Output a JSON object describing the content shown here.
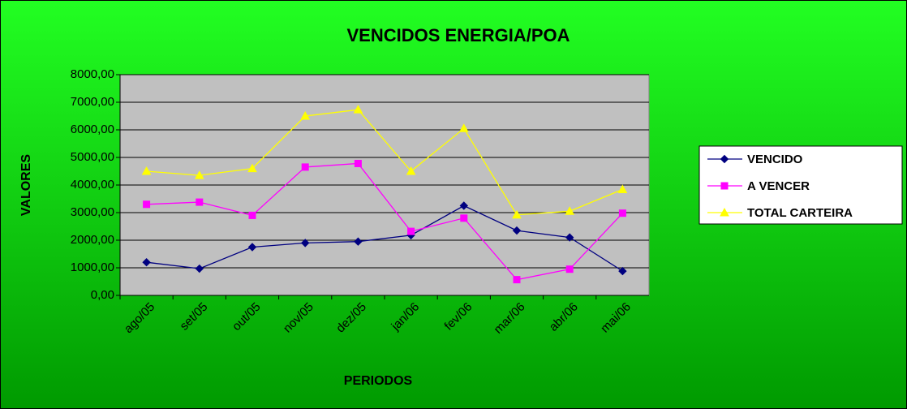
{
  "chart_data": {
    "type": "line",
    "title": "VENCIDOS ENERGIA/POA",
    "x_label": "PERIODOS",
    "y_label": "VALORES",
    "categories": [
      "ago/05",
      "set/05",
      "out/05",
      "nov/05",
      "dez/05",
      "jan/06",
      "fev/06",
      "mar/06",
      "abr/06",
      "mai/06"
    ],
    "series": [
      {
        "name": "VENCIDO",
        "color": "#000080",
        "marker": "diamond",
        "values": [
          1200,
          970,
          1750,
          1900,
          1950,
          2180,
          3250,
          2350,
          2100,
          880
        ]
      },
      {
        "name": "A VENCER",
        "color": "#ff00ff",
        "marker": "square",
        "values": [
          3300,
          3380,
          2900,
          4650,
          4780,
          2320,
          2800,
          570,
          950,
          2980
        ]
      },
      {
        "name": "TOTAL CARTEIRA",
        "color": "#ffff00",
        "marker": "triangle",
        "values": [
          4500,
          4350,
          4600,
          6500,
          6730,
          4500,
          6050,
          2920,
          3050,
          3840
        ]
      }
    ],
    "ylim": [
      0,
      8000
    ],
    "yticks": [
      {
        "value": 0,
        "label": "0,00"
      },
      {
        "value": 1000,
        "label": "1000,00"
      },
      {
        "value": 2000,
        "label": "2000,00"
      },
      {
        "value": 3000,
        "label": "3000,00"
      },
      {
        "value": 4000,
        "label": "4000,00"
      },
      {
        "value": 5000,
        "label": "5000,00"
      },
      {
        "value": 6000,
        "label": "6000,00"
      },
      {
        "value": 7000,
        "label": "7000,00"
      },
      {
        "value": 8000,
        "label": "8000,00"
      }
    ],
    "grid": true,
    "legend": "right"
  }
}
